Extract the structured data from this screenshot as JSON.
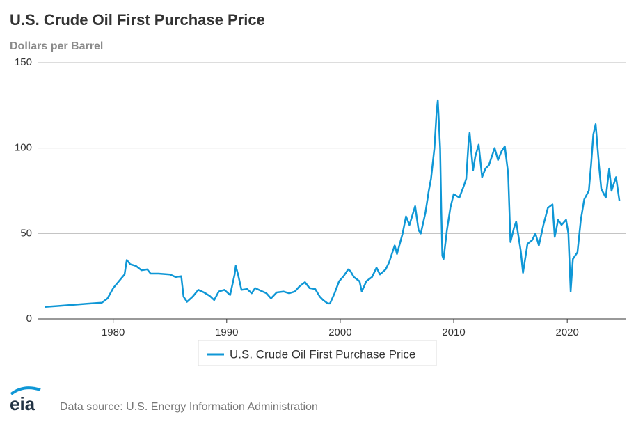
{
  "chart_data": {
    "type": "line",
    "title": "U.S. Crude Oil First Purchase Price",
    "subtitle": "Dollars per Barrel",
    "source": "Data source: U.S. Energy Information Administration",
    "logo": "eia",
    "xlim": [
      1973.4,
      2025.2
    ],
    "xticks": [
      1980,
      1990,
      2000,
      2010,
      2020
    ],
    "ylim": [
      0,
      150
    ],
    "yticks": [
      0,
      50,
      100,
      150
    ],
    "grid": true,
    "x": [
      1974.0,
      1975,
      1976,
      1977,
      1978,
      1979,
      1979.5,
      1980,
      1980.5,
      1981.0,
      1981.2,
      1981.5,
      1982,
      1982.5,
      1983,
      1983.3,
      1984,
      1985,
      1985.5,
      1986.0,
      1986.2,
      1986.5,
      1987,
      1987.5,
      1988,
      1988.5,
      1988.9,
      1989.3,
      1989.8,
      1990.3,
      1990.7,
      1990.8,
      1991.0,
      1991.3,
      1991.8,
      1992.2,
      1992.5,
      1993,
      1993.5,
      1993.9,
      1994.4,
      1995,
      1995.5,
      1996,
      1996.4,
      1996.9,
      1997.3,
      1997.8,
      1998.2,
      1998.5,
      1998.9,
      1999.1,
      1999.5,
      1999.9,
      2000.3,
      2000.7,
      2000.9,
      2001.2,
      2001.7,
      2001.9,
      2002.3,
      2002.8,
      2003.2,
      2003.5,
      2004,
      2004.3,
      2004.8,
      2005,
      2005.5,
      2005.8,
      2006.1,
      2006.6,
      2006.9,
      2007.1,
      2007.5,
      2007.8,
      2008.0,
      2008.3,
      2008.5,
      2008.6,
      2008.8,
      2008.9,
      2009.0,
      2009.1,
      2009.4,
      2009.7,
      2010,
      2010.5,
      2010.9,
      2011.1,
      2011.3,
      2011.4,
      2011.7,
      2011.9,
      2012.2,
      2012.5,
      2012.8,
      2013.1,
      2013.6,
      2013.9,
      2014.2,
      2014.5,
      2014.8,
      2015.0,
      2015.3,
      2015.5,
      2015.9,
      2016.1,
      2016.5,
      2016.9,
      2017.2,
      2017.5,
      2017.9,
      2018.3,
      2018.7,
      2018.9,
      2019.2,
      2019.5,
      2019.9,
      2020.1,
      2020.3,
      2020.5,
      2020.9,
      2021.2,
      2021.5,
      2021.9,
      2022.1,
      2022.3,
      2022.5,
      2022.8,
      2023.0,
      2023.4,
      2023.7,
      2023.9,
      2024.3,
      2024.6
    ],
    "series": [
      {
        "name": "U.S. Crude Oil First Purchase Price",
        "color": "#0f97d6",
        "values": [
          7,
          7.5,
          8,
          8.5,
          9,
          9.5,
          12,
          18,
          22,
          26,
          34.5,
          32,
          31,
          28.5,
          29,
          26.5,
          26.5,
          26,
          24.5,
          25,
          13,
          10,
          13,
          17,
          15.5,
          13.5,
          11,
          16,
          17,
          14,
          26,
          31,
          26,
          17,
          17.5,
          15,
          18,
          16.5,
          15,
          12,
          15.5,
          16,
          15,
          16,
          19,
          21.5,
          18,
          17.5,
          13,
          11,
          9,
          9,
          15,
          22,
          25,
          29,
          28,
          24.5,
          22,
          16,
          22,
          24.5,
          30,
          26,
          29,
          33,
          43,
          38,
          50,
          60,
          55,
          66,
          52,
          50,
          62,
          75,
          82,
          100,
          122,
          128,
          100,
          65,
          37,
          35,
          52,
          65,
          73,
          71,
          78,
          82,
          103,
          109,
          87,
          95,
          102,
          83,
          88,
          90,
          100,
          93,
          98,
          101,
          85,
          45,
          53,
          57,
          40,
          27,
          44,
          46,
          50,
          43,
          55,
          65,
          67,
          48,
          58,
          55,
          58,
          50,
          16,
          35,
          39,
          58,
          70,
          75,
          90,
          108,
          114,
          90,
          76,
          71,
          88,
          75,
          83,
          69
        ]
      }
    ]
  }
}
